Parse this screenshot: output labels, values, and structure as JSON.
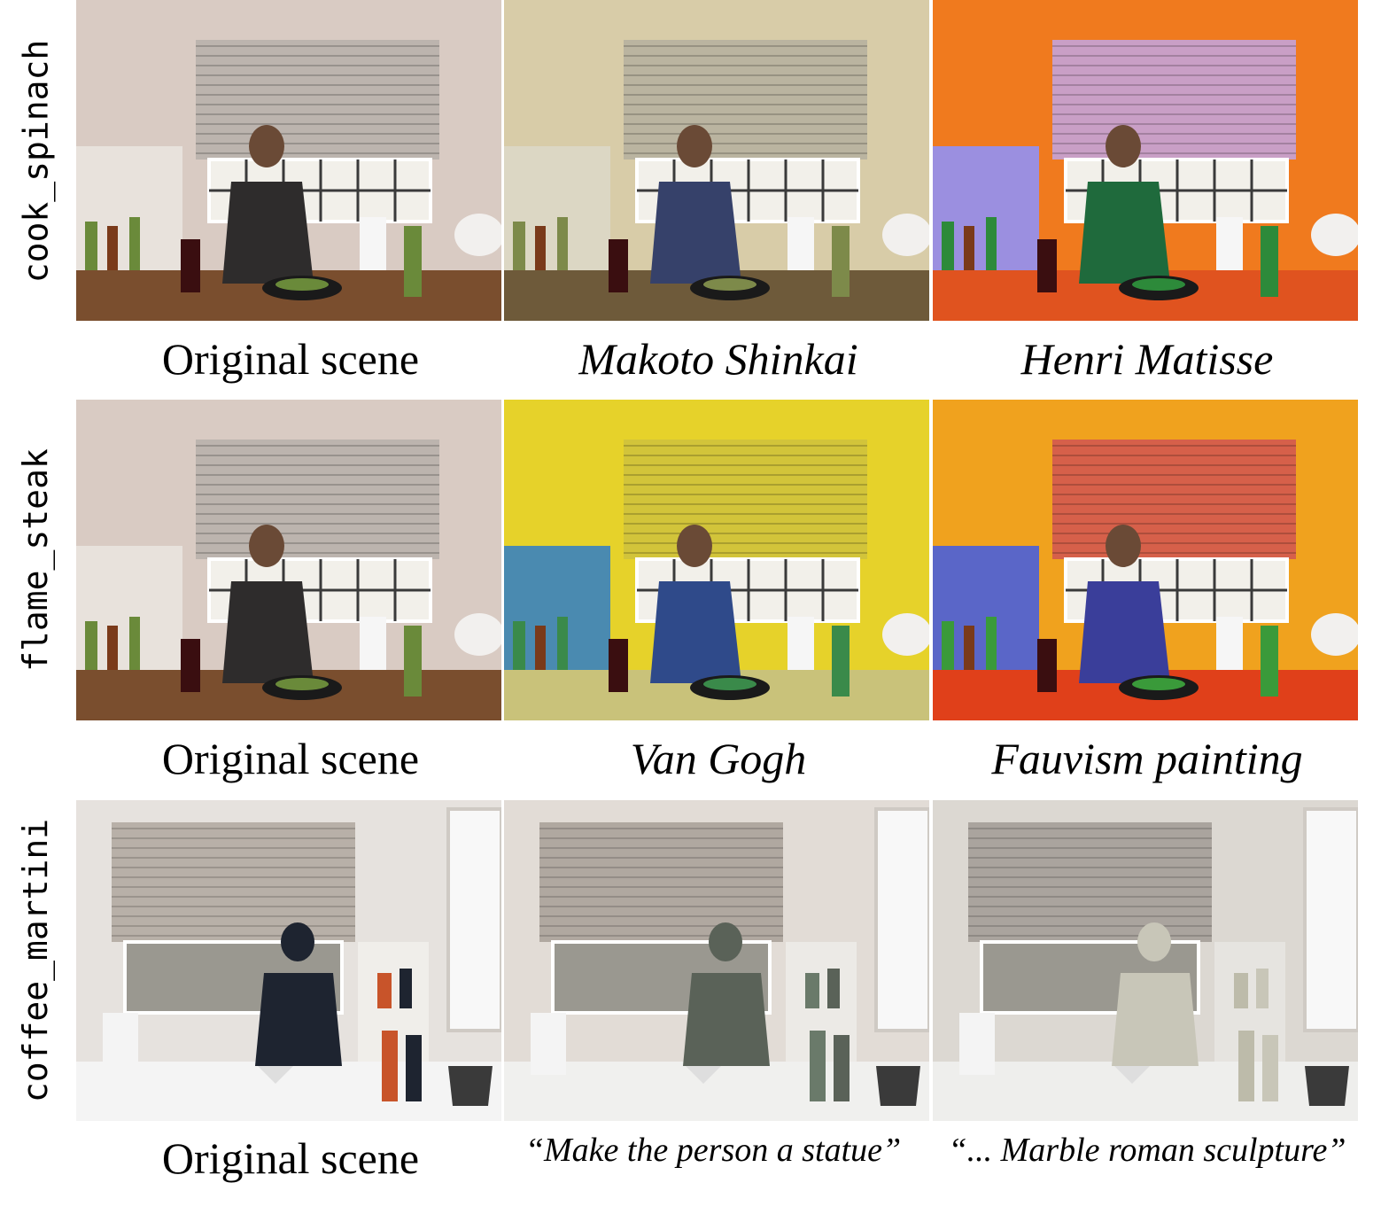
{
  "rows": [
    {
      "scene": "cook_spinach",
      "captions": [
        "Original scene",
        "Makoto Shinkai",
        "Henri Matisse"
      ]
    },
    {
      "scene": "flame_steak",
      "captions": [
        "Original scene",
        "Van Gogh",
        "Fauvism painting"
      ]
    },
    {
      "scene": "coffee_martini",
      "captions": [
        "Original scene",
        "“Make the person a statue”",
        "“... Marble roman sculpture”"
      ]
    }
  ],
  "palettes": {
    "original_warm": {
      "wall": "#d9cbc3",
      "blind": "#bcb4ae",
      "counter": "#7a4e2e",
      "person": "#2e2c2c",
      "shelf": "#e8e2dc",
      "accent": "#6a8a3a"
    },
    "shinkai": {
      "wall": "#d8cca8",
      "blind": "#bab4a0",
      "counter": "#6e5a3a",
      "person": "#36416a",
      "shelf": "#dcd7c4",
      "accent": "#7d8a4a"
    },
    "matisse": {
      "wall": "#f07a1e",
      "blind": "#c99fc6",
      "counter": "#e0531f",
      "person": "#1f6a3c",
      "shelf": "#9b8fe0",
      "accent": "#2d8a3a"
    },
    "vangogh": {
      "wall": "#e6d22a",
      "blind": "#d2c43a",
      "counter": "#c9c27a",
      "person": "#2f4a8a",
      "shelf": "#4a8ab0",
      "accent": "#3a8a4a"
    },
    "fauvism": {
      "wall": "#f0a21e",
      "blind": "#d6604a",
      "counter": "#e0401a",
      "person": "#3a3e9a",
      "shelf": "#5a66c8",
      "accent": "#3a9a3a"
    },
    "original_bright": {
      "wall": "#e6e2de",
      "blind": "#b8b0a8",
      "counter": "#f4f4f4",
      "person": "#1e2430",
      "shelf": "#f0eeea",
      "accent": "#c8542a"
    },
    "statue": {
      "wall": "#e2dcd6",
      "blind": "#b0a8a0",
      "counter": "#f0f0ee",
      "person": "#5a6258",
      "shelf": "#eceae6",
      "accent": "#6a7a6a"
    },
    "marble": {
      "wall": "#dcd8d2",
      "blind": "#aaa49e",
      "counter": "#eeeeec",
      "person": "#c8c6b8",
      "shelf": "#e6e4e0",
      "accent": "#bdbbaa"
    }
  }
}
